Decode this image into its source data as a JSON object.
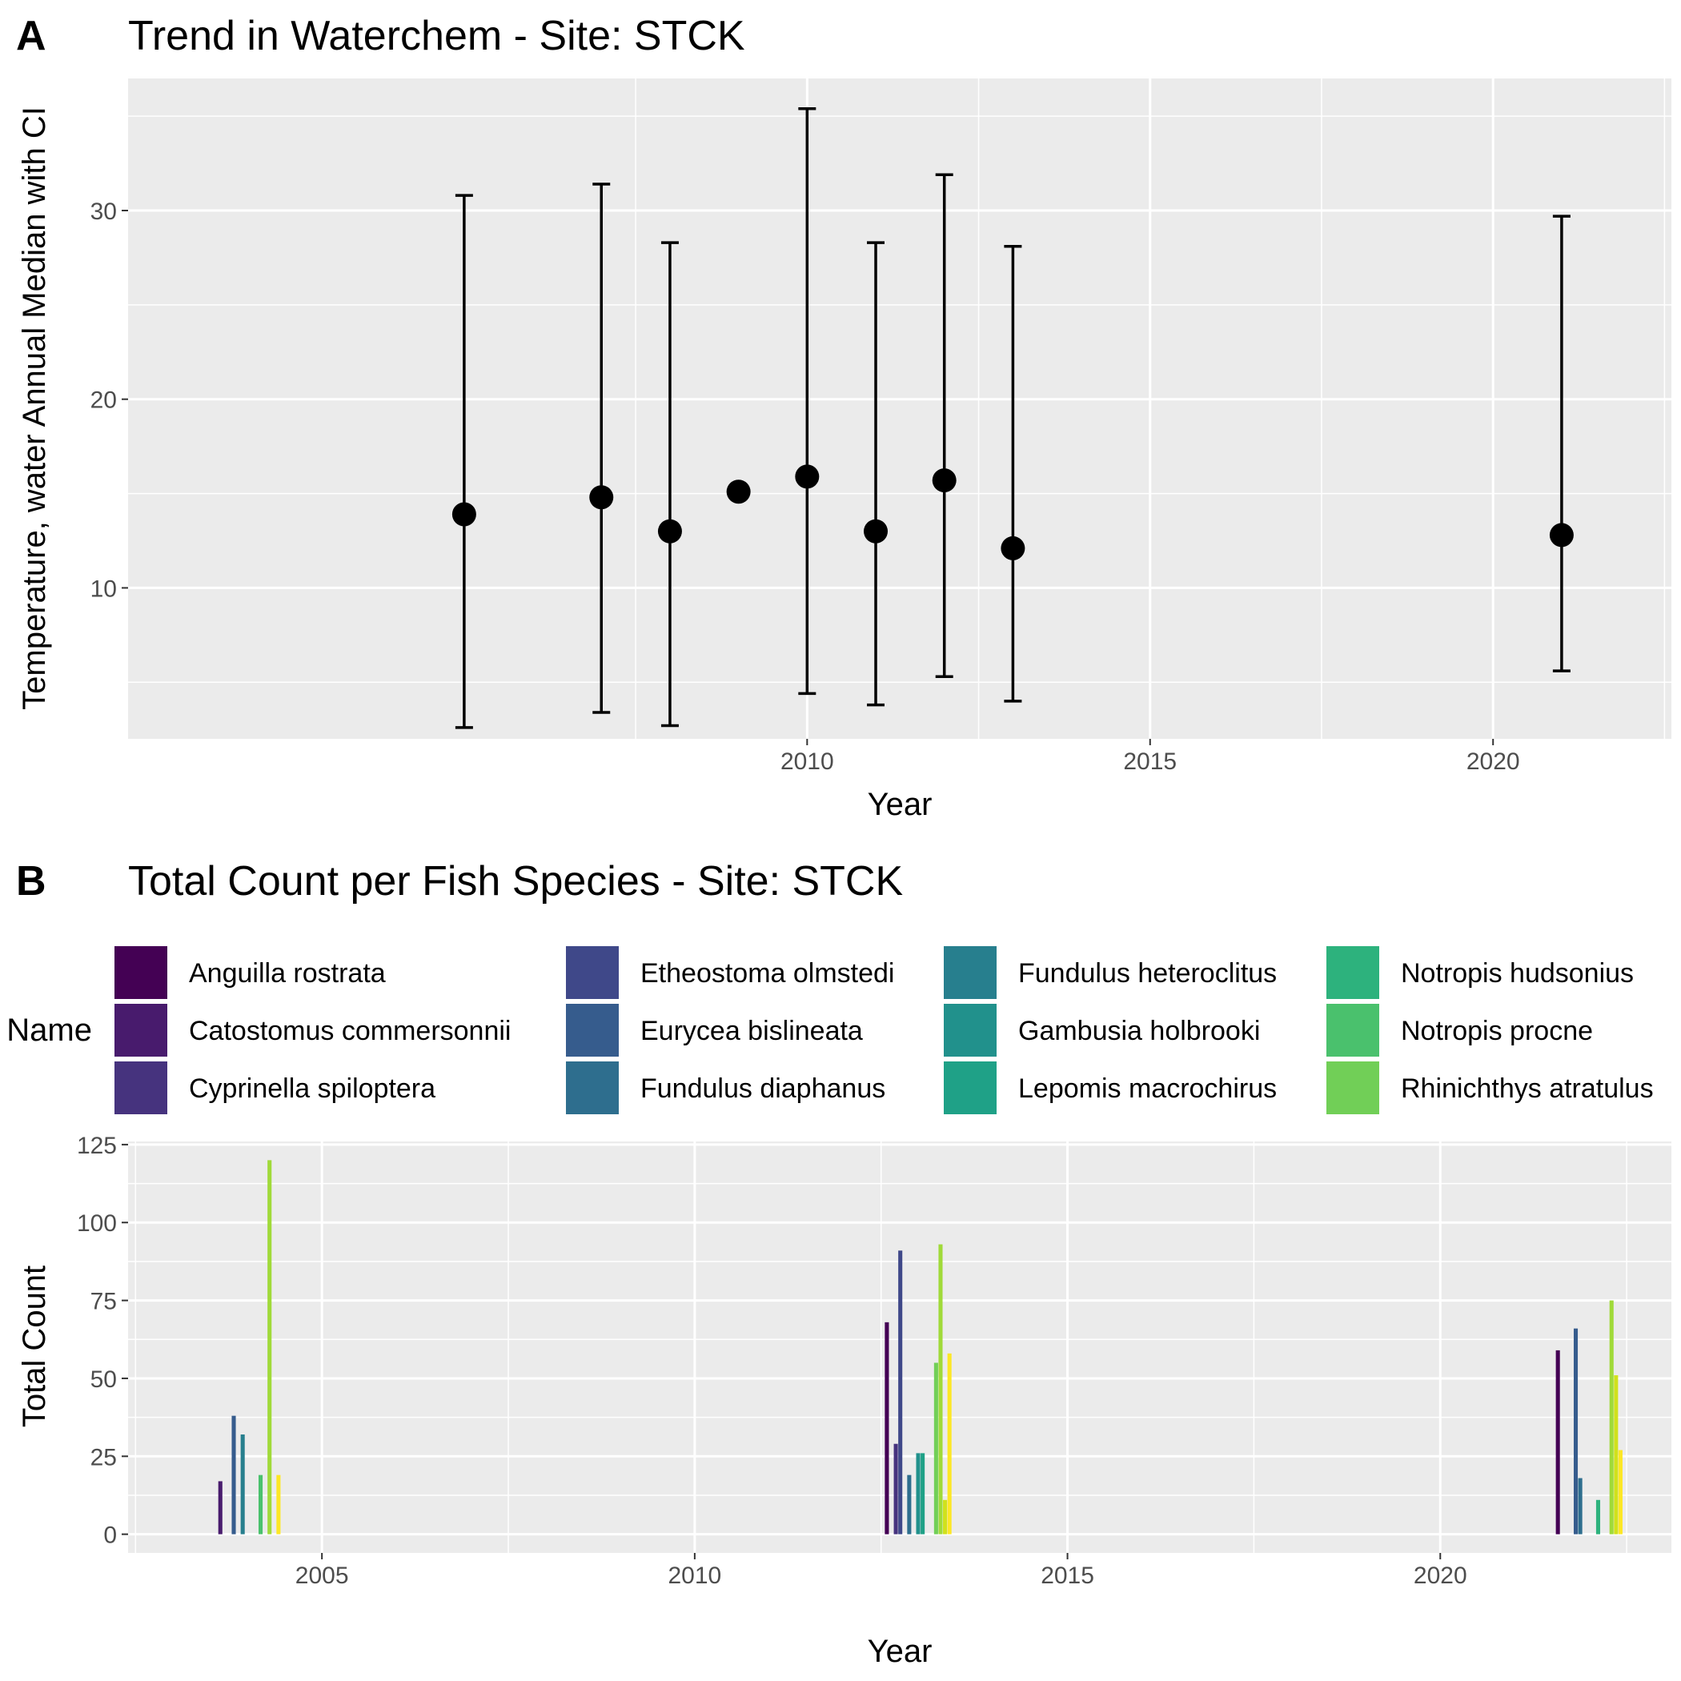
{
  "figure": {
    "background": "#ffffff",
    "panel_bg": "#ebebeb",
    "grid_color": "#ffffff"
  },
  "chart_data": [
    {
      "panel_label": "A",
      "type": "scatter",
      "title": "Trend in Waterchem - Site: STCK",
      "xlabel": "Year",
      "ylabel": "Temperature, water Annual Median with CI",
      "xlim": [
        2000.1,
        2022.6
      ],
      "ylim": [
        2.0,
        37.0
      ],
      "x_ticks": [
        2010,
        2015,
        2020
      ],
      "x_tick_labels": [
        "2010",
        "2015",
        "2020"
      ],
      "y_ticks": [
        10,
        20,
        30
      ],
      "y_tick_labels": [
        "10",
        "20",
        "30"
      ],
      "grid": true,
      "marker_color": "#000000",
      "points": [
        {
          "x": 2005,
          "y": 13.9,
          "lower": 2.6,
          "upper": 30.8
        },
        {
          "x": 2007,
          "y": 14.8,
          "lower": 3.4,
          "upper": 31.4
        },
        {
          "x": 2008,
          "y": 13.0,
          "lower": 2.7,
          "upper": 28.3
        },
        {
          "x": 2009,
          "y": 15.1,
          "lower": null,
          "upper": null
        },
        {
          "x": 2010,
          "y": 15.9,
          "lower": 4.4,
          "upper": 35.4
        },
        {
          "x": 2011,
          "y": 13.0,
          "lower": 3.8,
          "upper": 28.3
        },
        {
          "x": 2012,
          "y": 15.7,
          "lower": 5.3,
          "upper": 31.9
        },
        {
          "x": 2013,
          "y": 12.1,
          "lower": 4.0,
          "upper": 28.1
        },
        {
          "x": 2021,
          "y": 12.8,
          "lower": 5.6,
          "upper": 29.7
        }
      ]
    },
    {
      "panel_label": "B",
      "type": "bar",
      "title": "Total Count per Fish Species - Site: STCK",
      "xlabel": "Year",
      "ylabel": "Total Count",
      "legend_title": "Name",
      "legend_position": "top",
      "xlim": [
        2002.4,
        2023.1
      ],
      "ylim": [
        -6,
        126
      ],
      "x_ticks": [
        2005,
        2010,
        2015,
        2020
      ],
      "x_tick_labels": [
        "2005",
        "2010",
        "2015",
        "2020"
      ],
      "y_ticks": [
        0,
        25,
        50,
        75,
        100,
        125
      ],
      "y_tick_labels": [
        "0",
        "25",
        "50",
        "75",
        "100",
        "125"
      ],
      "grid": true,
      "species": [
        {
          "name": "Anguilla rostrata",
          "color": "#440154"
        },
        {
          "name": "Catostomus commersonnii",
          "color": "#481b6d"
        },
        {
          "name": "Cyprinella spiloptera",
          "color": "#46337e"
        },
        {
          "name": "Etheostoma olmstedi",
          "color": "#3f4889"
        },
        {
          "name": "Eurycea bislineata",
          "color": "#365c8d"
        },
        {
          "name": "Fundulus diaphanus",
          "color": "#2e6e8e"
        },
        {
          "name": "Fundulus heteroclitus",
          "color": "#277f8e"
        },
        {
          "name": "Gambusia holbrooki",
          "color": "#21918c"
        },
        {
          "name": "Lepomis macrochirus",
          "color": "#1fa187"
        },
        {
          "name": "Notropis hudsonius",
          "color": "#2db27d"
        },
        {
          "name": "Notropis procne",
          "color": "#4ac16d"
        },
        {
          "name": "Rhinichthys atratulus",
          "color": "#71cf57"
        },
        {
          "name": "",
          "color": "#a0da39"
        },
        {
          "name": "",
          "color": "#d0e11c"
        },
        {
          "name": "",
          "color": "#fde725"
        }
      ],
      "groups": [
        {
          "year": 2004,
          "bars": [
            {
              "species_index": 1,
              "value": 17
            },
            {
              "species_index": 4,
              "value": 38
            },
            {
              "species_index": 6,
              "value": 32
            },
            {
              "species_index": 10,
              "value": 19
            },
            {
              "species_index": 12,
              "value": 120
            },
            {
              "species_index": 14,
              "value": 19
            }
          ]
        },
        {
          "year": 2013,
          "bars": [
            {
              "species_index": 0,
              "value": 68
            },
            {
              "species_index": 2,
              "value": 29
            },
            {
              "species_index": 3,
              "value": 91
            },
            {
              "species_index": 5,
              "value": 19
            },
            {
              "species_index": 7,
              "value": 26
            },
            {
              "species_index": 8,
              "value": 26
            },
            {
              "species_index": 11,
              "value": 55
            },
            {
              "species_index": 12,
              "value": 93
            },
            {
              "species_index": 13,
              "value": 11
            },
            {
              "species_index": 14,
              "value": 58
            }
          ]
        },
        {
          "year": 2022,
          "bars": [
            {
              "species_index": 0,
              "value": 59
            },
            {
              "species_index": 4,
              "value": 66
            },
            {
              "species_index": 5,
              "value": 18
            },
            {
              "species_index": 9,
              "value": 11
            },
            {
              "species_index": 12,
              "value": 75
            },
            {
              "species_index": 13,
              "value": 51
            },
            {
              "species_index": 14,
              "value": 27
            }
          ]
        }
      ]
    }
  ]
}
